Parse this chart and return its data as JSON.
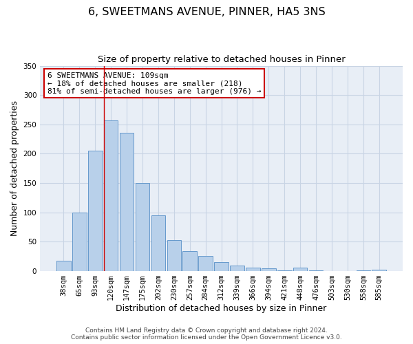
{
  "title": "6, SWEETMANS AVENUE, PINNER, HA5 3NS",
  "subtitle": "Size of property relative to detached houses in Pinner",
  "xlabel": "Distribution of detached houses by size in Pinner",
  "ylabel": "Number of detached properties",
  "bar_labels": [
    "38sqm",
    "65sqm",
    "93sqm",
    "120sqm",
    "147sqm",
    "175sqm",
    "202sqm",
    "230sqm",
    "257sqm",
    "284sqm",
    "312sqm",
    "339sqm",
    "366sqm",
    "394sqm",
    "421sqm",
    "448sqm",
    "476sqm",
    "503sqm",
    "530sqm",
    "558sqm",
    "585sqm"
  ],
  "bar_values": [
    18,
    100,
    205,
    257,
    236,
    150,
    95,
    53,
    34,
    26,
    15,
    9,
    6,
    5,
    1,
    6,
    1,
    0,
    0,
    1,
    2
  ],
  "bar_color": "#b8d0ea",
  "bar_edge_color": "#6699cc",
  "bar_edge_width": 0.7,
  "grid_color": "#c8d4e4",
  "bg_color": "#e8eef6",
  "ylim": [
    0,
    350
  ],
  "yticks": [
    0,
    50,
    100,
    150,
    200,
    250,
    300,
    350
  ],
  "vline_color": "#cc0000",
  "annotation_title": "6 SWEETMANS AVENUE: 109sqm",
  "annotation_line1": "← 18% of detached houses are smaller (218)",
  "annotation_line2": "81% of semi-detached houses are larger (976) →",
  "annotation_box_color": "#cc0000",
  "footer_line1": "Contains HM Land Registry data © Crown copyright and database right 2024.",
  "footer_line2": "Contains public sector information licensed under the Open Government Licence v3.0.",
  "title_fontsize": 11.5,
  "subtitle_fontsize": 9.5,
  "axis_label_fontsize": 9,
  "tick_fontsize": 7.5,
  "annotation_fontsize": 8,
  "footer_fontsize": 6.5
}
